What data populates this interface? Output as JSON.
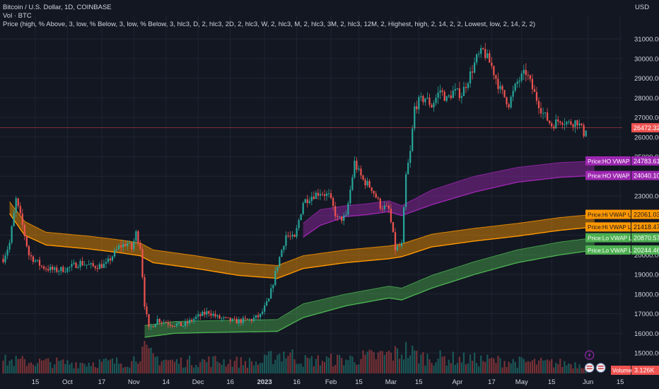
{
  "legend": {
    "line1": "Bitcoin / U.S. Dollar, 1D, COINBASE",
    "line2": "Vol · BTC",
    "line3": "Price (high, % Above, 3, low, % Below, 3, low, % Below, 3, hlc3, D, 2, hlc3, 2D, 2, hlc3, W, 2, hlc3, M, 2, hlc3, 3M, 2, hlc3, 12M, 2, Highest, high, 2, 14, 2, 2, Lowest, low, 2, 14, 2, 2)"
  },
  "currency": "USD",
  "colors": {
    "background": "#131722",
    "up": "#26a69a",
    "down": "#ef5350",
    "orange": "#ff9800",
    "purple": "#9c27b0",
    "green": "#4caf50",
    "axis_text": "#d1d4dc"
  },
  "chart_data": {
    "type": "candlestick",
    "y_axis": {
      "min": 14300,
      "max": 31500,
      "ticks": [
        15000,
        16000,
        17000,
        18000,
        19000,
        20000,
        21000,
        22000,
        23000,
        24000,
        25000,
        26000,
        27000,
        28000,
        29000,
        30000,
        31000
      ],
      "tick_labels": [
        "15000.00",
        "16000.00",
        "17000.00",
        "18000.00",
        "19000.00",
        "20000.00",
        "21000.00",
        "22000.00",
        "23000.00",
        "24000.00",
        "25000.00",
        "26000.00",
        "27000.00",
        "28000.00",
        "29000.00",
        "30000.00",
        "31000.00"
      ]
    },
    "x_axis": {
      "labels": [
        {
          "day": 15,
          "label": "15",
          "bold": false
        },
        {
          "day": 30,
          "label": "Oct",
          "bold": false
        },
        {
          "day": 46,
          "label": "17",
          "bold": false
        },
        {
          "day": 61,
          "label": "Nov",
          "bold": false
        },
        {
          "day": 76,
          "label": "14",
          "bold": false
        },
        {
          "day": 91,
          "label": "Dec",
          "bold": false
        },
        {
          "day": 106,
          "label": "16",
          "bold": false
        },
        {
          "day": 122,
          "label": "2023",
          "bold": true
        },
        {
          "day": 137,
          "label": "16",
          "bold": false
        },
        {
          "day": 153,
          "label": "Feb",
          "bold": false
        },
        {
          "day": 166,
          "label": "15",
          "bold": false
        },
        {
          "day": 181,
          "label": "Mar",
          "bold": false
        },
        {
          "day": 194,
          "label": "15",
          "bold": false
        },
        {
          "day": 212,
          "label": "Apr",
          "bold": false
        },
        {
          "day": 228,
          "label": "17",
          "bold": false
        },
        {
          "day": 242,
          "label": "May",
          "bold": false
        },
        {
          "day": 256,
          "label": "15",
          "bold": false
        },
        {
          "day": 273,
          "label": "Jun",
          "bold": false
        },
        {
          "day": 288,
          "label": "15",
          "bold": false
        }
      ]
    },
    "price_keypoints": [
      [
        0,
        19800
      ],
      [
        3,
        20600
      ],
      [
        6,
        22800
      ],
      [
        9,
        21500
      ],
      [
        12,
        20000
      ],
      [
        18,
        19400
      ],
      [
        24,
        19200
      ],
      [
        30,
        19300
      ],
      [
        36,
        19600
      ],
      [
        42,
        19400
      ],
      [
        48,
        19500
      ],
      [
        54,
        20400
      ],
      [
        58,
        20600
      ],
      [
        60,
        20300
      ],
      [
        62,
        21100
      ],
      [
        64,
        20400
      ],
      [
        66,
        17500
      ],
      [
        68,
        16200
      ],
      [
        72,
        16700
      ],
      [
        78,
        16500
      ],
      [
        84,
        16400
      ],
      [
        90,
        16800
      ],
      [
        96,
        17100
      ],
      [
        100,
        16800
      ],
      [
        108,
        16600
      ],
      [
        116,
        16700
      ],
      [
        120,
        16900
      ],
      [
        124,
        17700
      ],
      [
        128,
        19500
      ],
      [
        132,
        21000
      ],
      [
        136,
        20800
      ],
      [
        140,
        22700
      ],
      [
        144,
        23000
      ],
      [
        148,
        23200
      ],
      [
        152,
        23000
      ],
      [
        156,
        21800
      ],
      [
        160,
        21900
      ],
      [
        162,
        23300
      ],
      [
        164,
        24700
      ],
      [
        166,
        24200
      ],
      [
        168,
        23800
      ],
      [
        172,
        23400
      ],
      [
        176,
        22500
      ],
      [
        180,
        22300
      ],
      [
        183,
        20300
      ],
      [
        186,
        20500
      ],
      [
        188,
        24000
      ],
      [
        190,
        25200
      ],
      [
        192,
        27500
      ],
      [
        194,
        27800
      ],
      [
        197,
        28000
      ],
      [
        200,
        27600
      ],
      [
        204,
        28400
      ],
      [
        207,
        27900
      ],
      [
        210,
        28300
      ],
      [
        214,
        28200
      ],
      [
        218,
        29200
      ],
      [
        221,
        30000
      ],
      [
        224,
        30400
      ],
      [
        228,
        29600
      ],
      [
        232,
        28400
      ],
      [
        236,
        27700
      ],
      [
        240,
        28800
      ],
      [
        244,
        29300
      ],
      [
        248,
        28200
      ],
      [
        252,
        27200
      ],
      [
        256,
        26600
      ],
      [
        260,
        26900
      ],
      [
        264,
        26700
      ],
      [
        268,
        26800
      ],
      [
        271,
        26200
      ],
      [
        272,
        26472
      ]
    ],
    "volume_keypoints": [
      [
        0,
        0.55
      ],
      [
        30,
        0.45
      ],
      [
        60,
        0.5
      ],
      [
        64,
        1.0
      ],
      [
        66,
        0.95
      ],
      [
        70,
        0.7
      ],
      [
        80,
        0.5
      ],
      [
        100,
        0.55
      ],
      [
        120,
        0.45
      ],
      [
        126,
        0.75
      ],
      [
        132,
        0.9
      ],
      [
        140,
        0.55
      ],
      [
        160,
        0.6
      ],
      [
        183,
        0.85
      ],
      [
        188,
        1.0
      ],
      [
        195,
        0.7
      ],
      [
        220,
        0.6
      ],
      [
        240,
        0.5
      ],
      [
        272,
        0.4
      ]
    ],
    "bands": [
      {
        "name": "Hi VWAP",
        "color": "#ff9800",
        "start_day": 3,
        "lower": [
          [
            3,
            22100
          ],
          [
            10,
            21000
          ],
          [
            20,
            20500
          ],
          [
            40,
            20300
          ],
          [
            55,
            20100
          ],
          [
            64,
            19950
          ],
          [
            70,
            19600
          ],
          [
            90,
            19300
          ],
          [
            110,
            18950
          ],
          [
            128,
            18800
          ],
          [
            140,
            19300
          ],
          [
            160,
            19600
          ],
          [
            180,
            19800
          ],
          [
            186,
            19900
          ],
          [
            200,
            20400
          ],
          [
            220,
            20700
          ],
          [
            240,
            20950
          ],
          [
            260,
            21250
          ],
          [
            276,
            21420
          ]
        ],
        "upper": [
          [
            3,
            22700
          ],
          [
            10,
            21700
          ],
          [
            20,
            21150
          ],
          [
            40,
            20950
          ],
          [
            55,
            20750
          ],
          [
            64,
            20600
          ],
          [
            70,
            20250
          ],
          [
            90,
            19950
          ],
          [
            110,
            19600
          ],
          [
            128,
            19450
          ],
          [
            140,
            19950
          ],
          [
            160,
            20250
          ],
          [
            180,
            20450
          ],
          [
            186,
            20550
          ],
          [
            200,
            21050
          ],
          [
            220,
            21350
          ],
          [
            240,
            21600
          ],
          [
            260,
            21900
          ],
          [
            276,
            22060
          ]
        ]
      },
      {
        "name": "HO VWAP",
        "color": "#9c27b0",
        "start_day": 140,
        "lower": [
          [
            140,
            20900
          ],
          [
            148,
            21500
          ],
          [
            160,
            21950
          ],
          [
            170,
            22050
          ],
          [
            180,
            22200
          ],
          [
            186,
            22000
          ],
          [
            200,
            22550
          ],
          [
            220,
            23200
          ],
          [
            240,
            23700
          ],
          [
            260,
            23950
          ],
          [
            276,
            24040
          ]
        ],
        "upper": [
          [
            140,
            21600
          ],
          [
            148,
            22300
          ],
          [
            160,
            22500
          ],
          [
            170,
            22600
          ],
          [
            180,
            22750
          ],
          [
            186,
            22500
          ],
          [
            200,
            23300
          ],
          [
            220,
            24000
          ],
          [
            240,
            24450
          ],
          [
            260,
            24700
          ],
          [
            276,
            24780
          ]
        ]
      },
      {
        "name": "Lo VWAP",
        "color": "#4caf50",
        "start_day": 66,
        "lower": [
          [
            66,
            15800
          ],
          [
            80,
            16000
          ],
          [
            100,
            16050
          ],
          [
            128,
            16100
          ],
          [
            140,
            16800
          ],
          [
            160,
            17400
          ],
          [
            180,
            17800
          ],
          [
            186,
            17700
          ],
          [
            200,
            18300
          ],
          [
            220,
            19000
          ],
          [
            240,
            19600
          ],
          [
            260,
            20000
          ],
          [
            276,
            20240
          ]
        ],
        "upper": [
          [
            66,
            16400
          ],
          [
            80,
            16600
          ],
          [
            100,
            16650
          ],
          [
            128,
            16700
          ],
          [
            140,
            17500
          ],
          [
            160,
            18000
          ],
          [
            180,
            18400
          ],
          [
            186,
            18300
          ],
          [
            200,
            18950
          ],
          [
            220,
            19650
          ],
          [
            240,
            20250
          ],
          [
            260,
            20650
          ],
          [
            276,
            20870
          ]
        ]
      }
    ],
    "price_labels": [
      {
        "name": "Price:HO VWAP Line",
        "value": "24783.61",
        "color": "#9c27b0",
        "price": 24783.61,
        "text_color": "#ffffff"
      },
      {
        "name": "Price:HO VWAP Lowr",
        "value": "24040.10",
        "color": "#9c27b0",
        "price": 24040.1,
        "text_color": "#ffffff"
      },
      {
        "name": "Price:Hi VWAP Uppr",
        "value": "22061.03",
        "color": "#ff9800",
        "price": 22061.03,
        "text_color": "#131722"
      },
      {
        "name": "Price:Hi VWAP Line",
        "value": "21418.47",
        "color": "#ff9800",
        "price": 21418.47,
        "text_color": "#131722"
      },
      {
        "name": "Price:Lo VWAP Line",
        "value": "20870.57",
        "color": "#4caf50",
        "price": 20870.57,
        "text_color": "#ffffff"
      },
      {
        "name": "Price:Lo VWAP Lowr",
        "value": "20244.46",
        "color": "#4caf50",
        "price": 20244.46,
        "text_color": "#ffffff"
      }
    ],
    "last_price": {
      "value": "26472.32",
      "price": 26472.32,
      "color": "#ef5350"
    },
    "volume_label": {
      "name": "Volume",
      "value": "3.126K",
      "color": "#ef5350"
    }
  }
}
